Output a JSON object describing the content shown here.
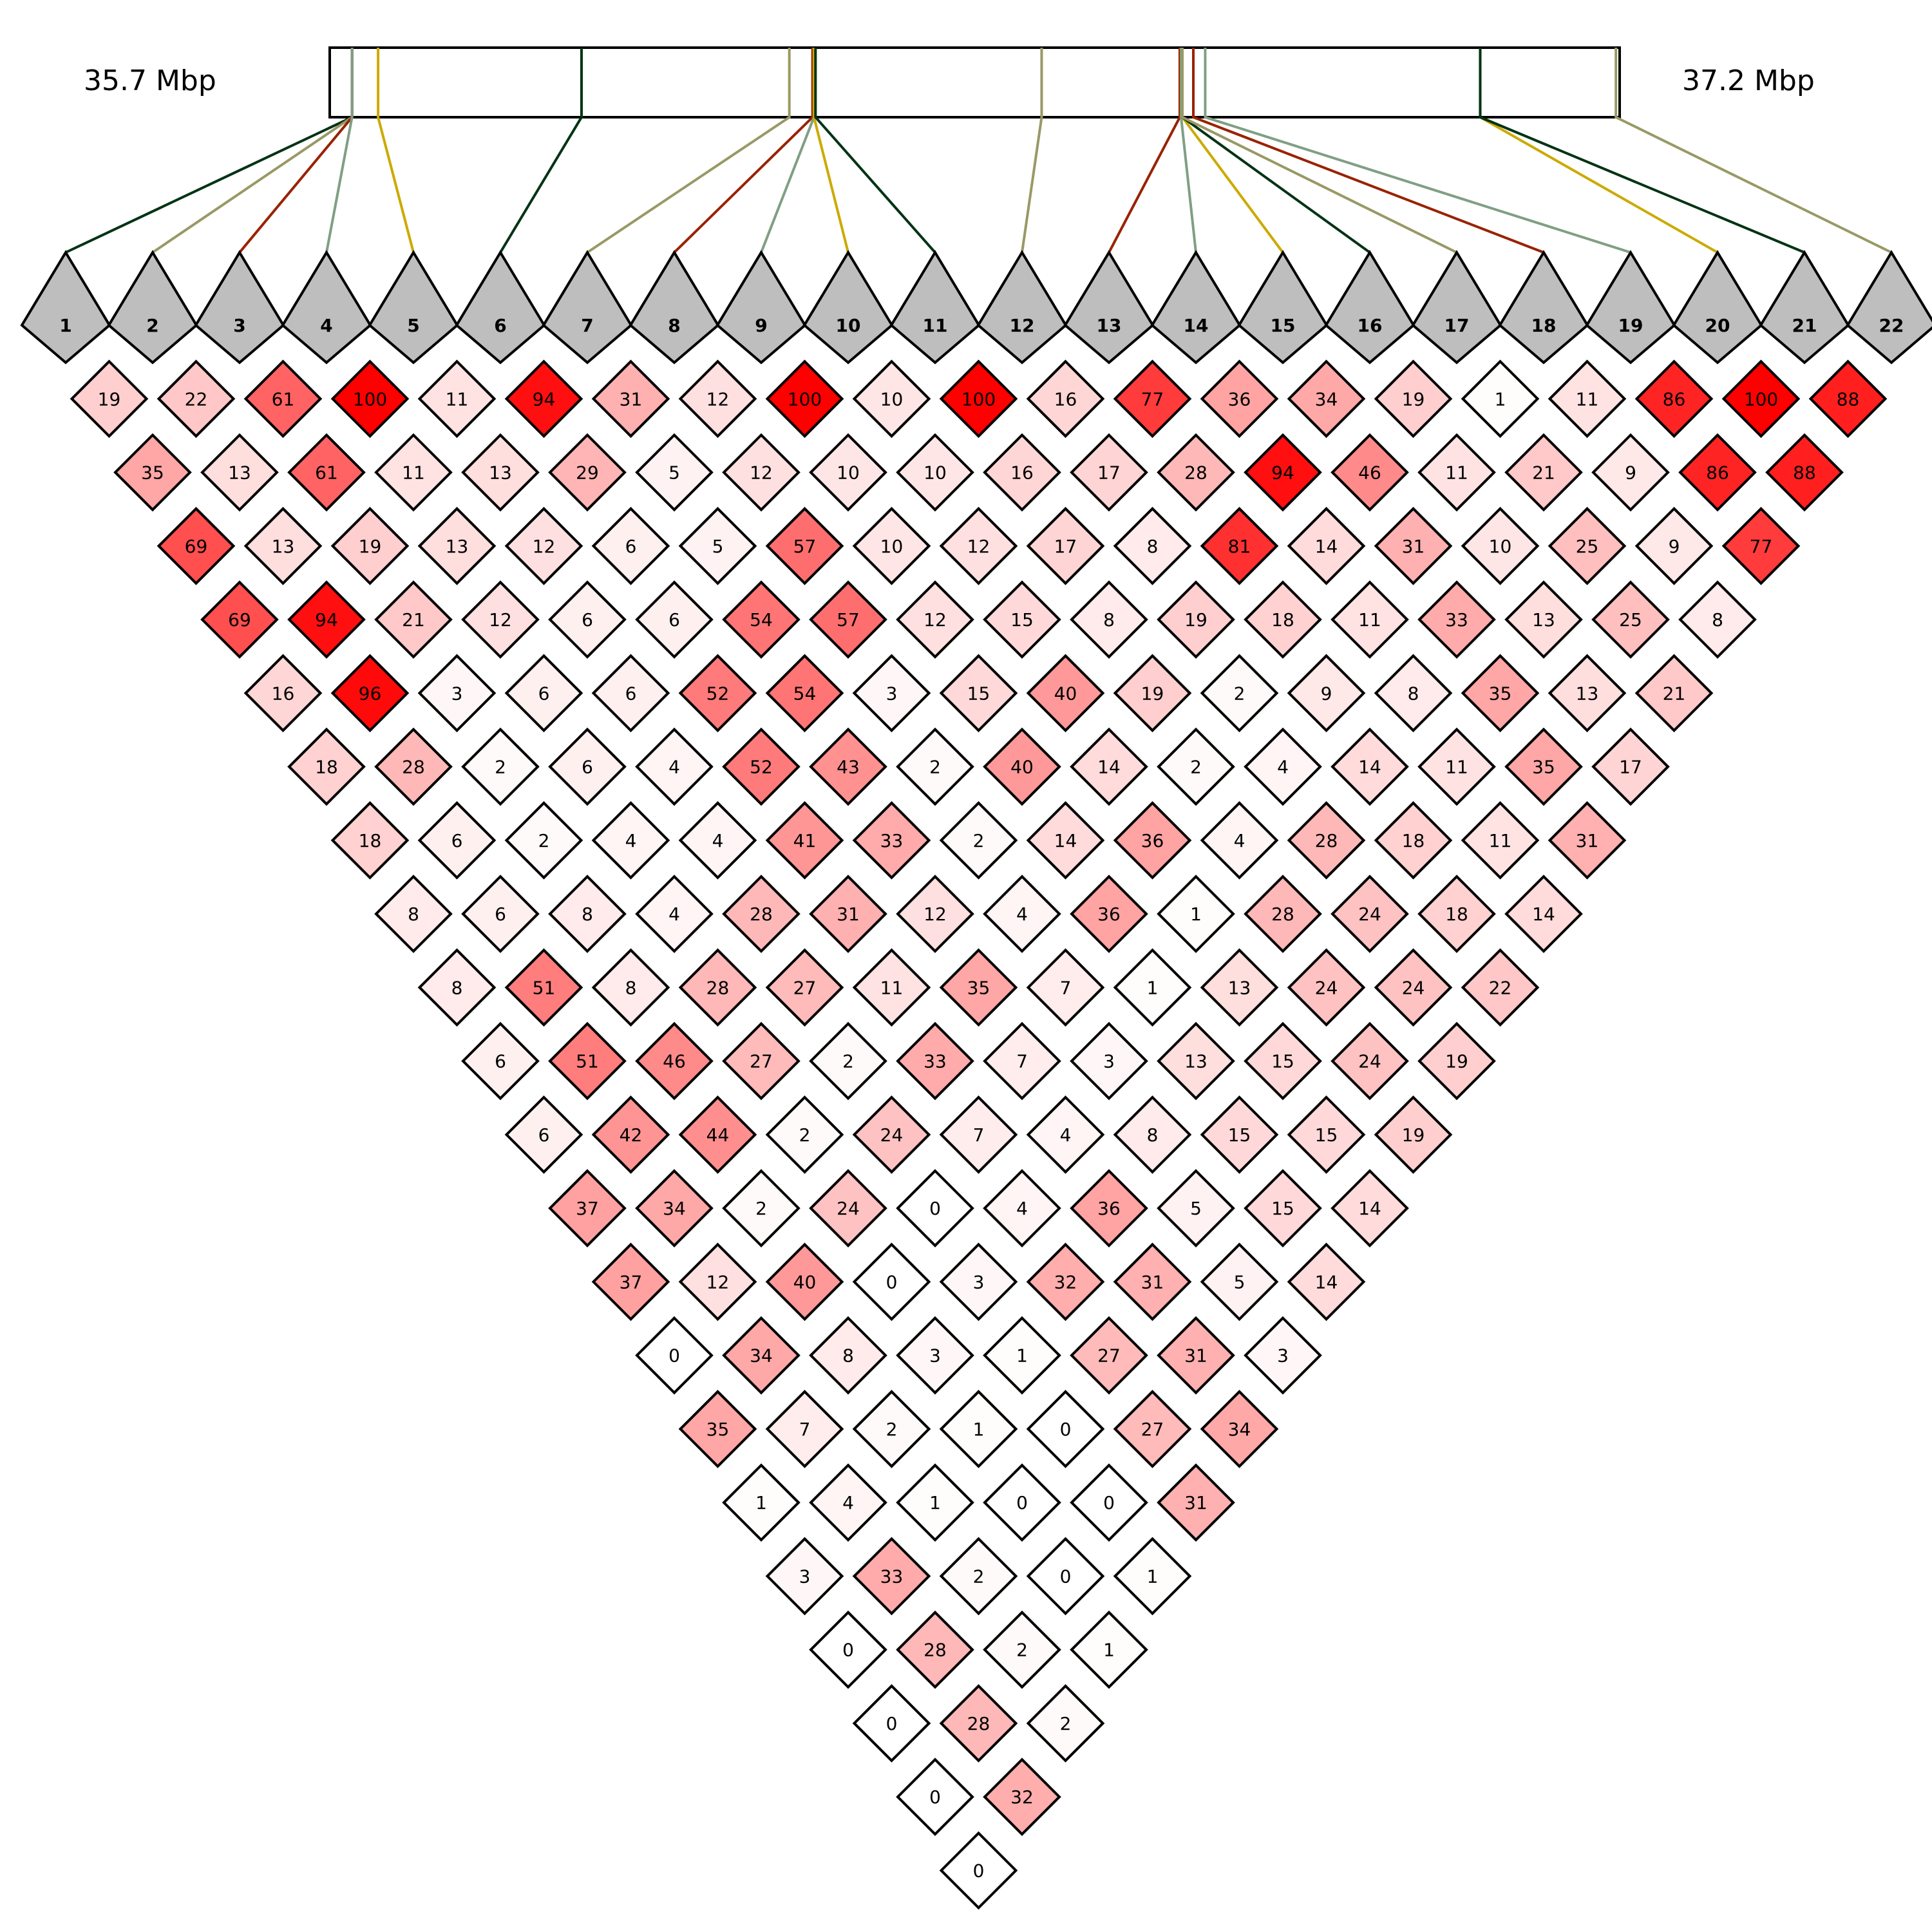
{
  "chart_data": {
    "type": "heatmap",
    "subtype": "ld-triangle",
    "region_start_label": "35.7 Mbp",
    "region_end_label": "37.2 Mbp",
    "color_low": "#ffffff",
    "color_high": "#ff0000",
    "marker_fill": "#bebebe",
    "markers": [
      "1",
      "2",
      "3",
      "4",
      "5",
      "6",
      "7",
      "8",
      "9",
      "10",
      "11",
      "12",
      "13",
      "14",
      "15",
      "16",
      "17",
      "18",
      "19",
      "20",
      "21",
      "22"
    ],
    "marker_positions": [
      0.0173,
      0.0173,
      0.0173,
      0.0173,
      0.0375,
      0.1952,
      0.3563,
      0.3743,
      0.3754,
      0.3754,
      0.3766,
      0.5519,
      0.659,
      0.66,
      0.661,
      0.661,
      0.661,
      0.6695,
      0.6787,
      0.8919,
      0.8919,
      0.9971
    ],
    "marker_line_colors": [
      "#003314",
      "#999966",
      "#992200",
      "#7f9f84",
      "#ccaa00",
      "#003314",
      "#999966",
      "#992200",
      "#7f9f84",
      "#ccaa00",
      "#003314",
      "#999966",
      "#992200",
      "#7f9f84",
      "#ccaa00",
      "#003314",
      "#999966",
      "#992200",
      "#7f9f84",
      "#ccaa00",
      "#003314",
      "#999966"
    ],
    "gene_boundaries": [
      0.1952,
      0.3754,
      0.659,
      0.8919
    ],
    "ld_rows": [
      [
        19,
        22,
        61,
        100,
        11,
        94,
        31,
        12,
        100,
        10,
        100,
        16,
        77,
        36,
        34,
        19,
        1,
        11,
        86,
        100,
        88
      ],
      [
        35,
        13,
        61,
        11,
        13,
        29,
        5,
        12,
        10,
        10,
        16,
        17,
        28,
        94,
        46,
        11,
        21,
        9,
        86,
        88
      ],
      [
        69,
        13,
        19,
        13,
        12,
        6,
        5,
        57,
        10,
        12,
        17,
        8,
        81,
        14,
        31,
        10,
        25,
        9,
        77
      ],
      [
        69,
        94,
        21,
        12,
        6,
        6,
        54,
        57,
        12,
        15,
        8,
        19,
        18,
        11,
        33,
        13,
        25,
        8
      ],
      [
        16,
        96,
        3,
        6,
        6,
        52,
        54,
        3,
        15,
        40,
        19,
        2,
        9,
        8,
        35,
        13,
        21
      ],
      [
        18,
        28,
        2,
        6,
        4,
        52,
        43,
        2,
        40,
        14,
        2,
        4,
        14,
        11,
        35,
        17
      ],
      [
        18,
        6,
        2,
        4,
        4,
        41,
        33,
        2,
        14,
        36,
        4,
        28,
        18,
        11,
        31
      ],
      [
        8,
        6,
        8,
        4,
        28,
        31,
        12,
        4,
        36,
        1,
        28,
        24,
        18,
        14
      ],
      [
        8,
        51,
        8,
        28,
        27,
        11,
        35,
        7,
        1,
        13,
        24,
        24,
        22
      ],
      [
        6,
        51,
        46,
        27,
        2,
        33,
        7,
        3,
        13,
        15,
        24,
        19
      ],
      [
        6,
        42,
        44,
        2,
        24,
        7,
        4,
        8,
        15,
        15,
        19
      ],
      [
        37,
        34,
        2,
        24,
        0,
        4,
        36,
        5,
        15,
        14
      ],
      [
        37,
        12,
        40,
        0,
        3,
        32,
        31,
        5,
        14
      ],
      [
        0,
        34,
        8,
        3,
        1,
        27,
        31,
        3
      ],
      [
        35,
        7,
        2,
        1,
        0,
        27,
        34
      ],
      [
        1,
        4,
        1,
        0,
        0,
        31
      ],
      [
        3,
        33,
        2,
        0,
        1
      ],
      [
        0,
        28,
        2,
        1
      ],
      [
        0,
        28,
        2
      ],
      [
        0,
        32
      ],
      [
        0
      ]
    ]
  }
}
